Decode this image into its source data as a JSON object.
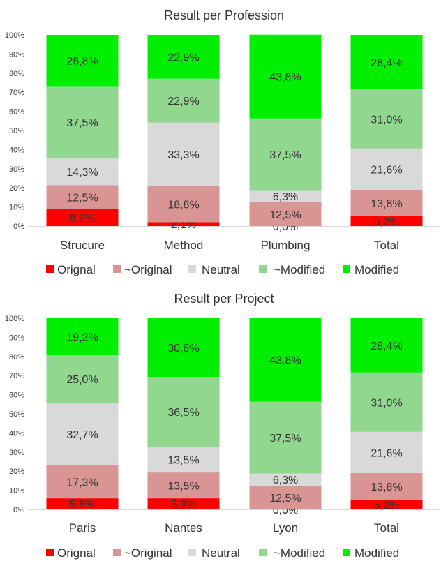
{
  "legend_colors": {
    "Orignal": "#ff0000",
    "~Original": "#d99594",
    "Neutral": "#d9d9d9",
    "~Modified": "#92d78f",
    "Modified": "#00ee00"
  },
  "chart_data": [
    {
      "type": "bar",
      "stacked": true,
      "title": "Result per Profession",
      "categories": [
        "Strucure",
        "Method",
        "Plumbing",
        "Total"
      ],
      "yticks": [
        "0%",
        "10%",
        "20%",
        "30%",
        "40%",
        "50%",
        "60%",
        "70%",
        "80%",
        "90%",
        "100%"
      ],
      "ylim": [
        0,
        100
      ],
      "legend_position": "bottom",
      "series": [
        {
          "name": "Orignal",
          "values": [
            8.9,
            2.1,
            0.0,
            5.2
          ],
          "labels": [
            "8,9%",
            "2,1%",
            "0,0%",
            "5,2%"
          ]
        },
        {
          "name": "~Original",
          "values": [
            12.5,
            18.8,
            12.5,
            13.8
          ],
          "labels": [
            "12,5%",
            "18,8%",
            "12,5%",
            "13,8%"
          ]
        },
        {
          "name": "Neutral",
          "values": [
            14.3,
            33.3,
            6.3,
            21.6
          ],
          "labels": [
            "14,3%",
            "33,3%",
            "6,3%",
            "21,6%"
          ]
        },
        {
          "name": "~Modified",
          "values": [
            37.5,
            22.9,
            37.5,
            31.0
          ],
          "labels": [
            "37,5%",
            "22,9%",
            "37,5%",
            "31,0%"
          ]
        },
        {
          "name": "Modified",
          "values": [
            26.8,
            22.9,
            43.8,
            28.4
          ],
          "labels": [
            "26,8%",
            "22,9%",
            "43,8%",
            "28,4%"
          ]
        }
      ]
    },
    {
      "type": "bar",
      "stacked": true,
      "title": "Result per Project",
      "categories": [
        "Paris",
        "Nantes",
        "Lyon",
        "Total"
      ],
      "yticks": [
        "0%",
        "10%",
        "20%",
        "30%",
        "40%",
        "50%",
        "60%",
        "70%",
        "80%",
        "90%",
        "100%"
      ],
      "ylim": [
        0,
        100
      ],
      "legend_position": "bottom",
      "series": [
        {
          "name": "Orignal",
          "values": [
            5.8,
            5.8,
            0.0,
            5.2
          ],
          "labels": [
            "5,8%",
            "5,8%",
            "0,0%",
            "5,2%"
          ]
        },
        {
          "name": "~Original",
          "values": [
            17.3,
            13.5,
            12.5,
            13.8
          ],
          "labels": [
            "17,3%",
            "13,5%",
            "12,5%",
            "13,8%"
          ]
        },
        {
          "name": "Neutral",
          "values": [
            32.7,
            13.5,
            6.3,
            21.6
          ],
          "labels": [
            "32,7%",
            "13,5%",
            "6,3%",
            "21,6%"
          ]
        },
        {
          "name": "~Modified",
          "values": [
            25.0,
            36.5,
            37.5,
            31.0
          ],
          "labels": [
            "25,0%",
            "36,5%",
            "37,5%",
            "31,0%"
          ]
        },
        {
          "name": "Modified",
          "values": [
            19.2,
            30.8,
            43.8,
            28.4
          ],
          "labels": [
            "19,2%",
            "30,8%",
            "43,8%",
            "28,4%"
          ]
        }
      ]
    }
  ]
}
